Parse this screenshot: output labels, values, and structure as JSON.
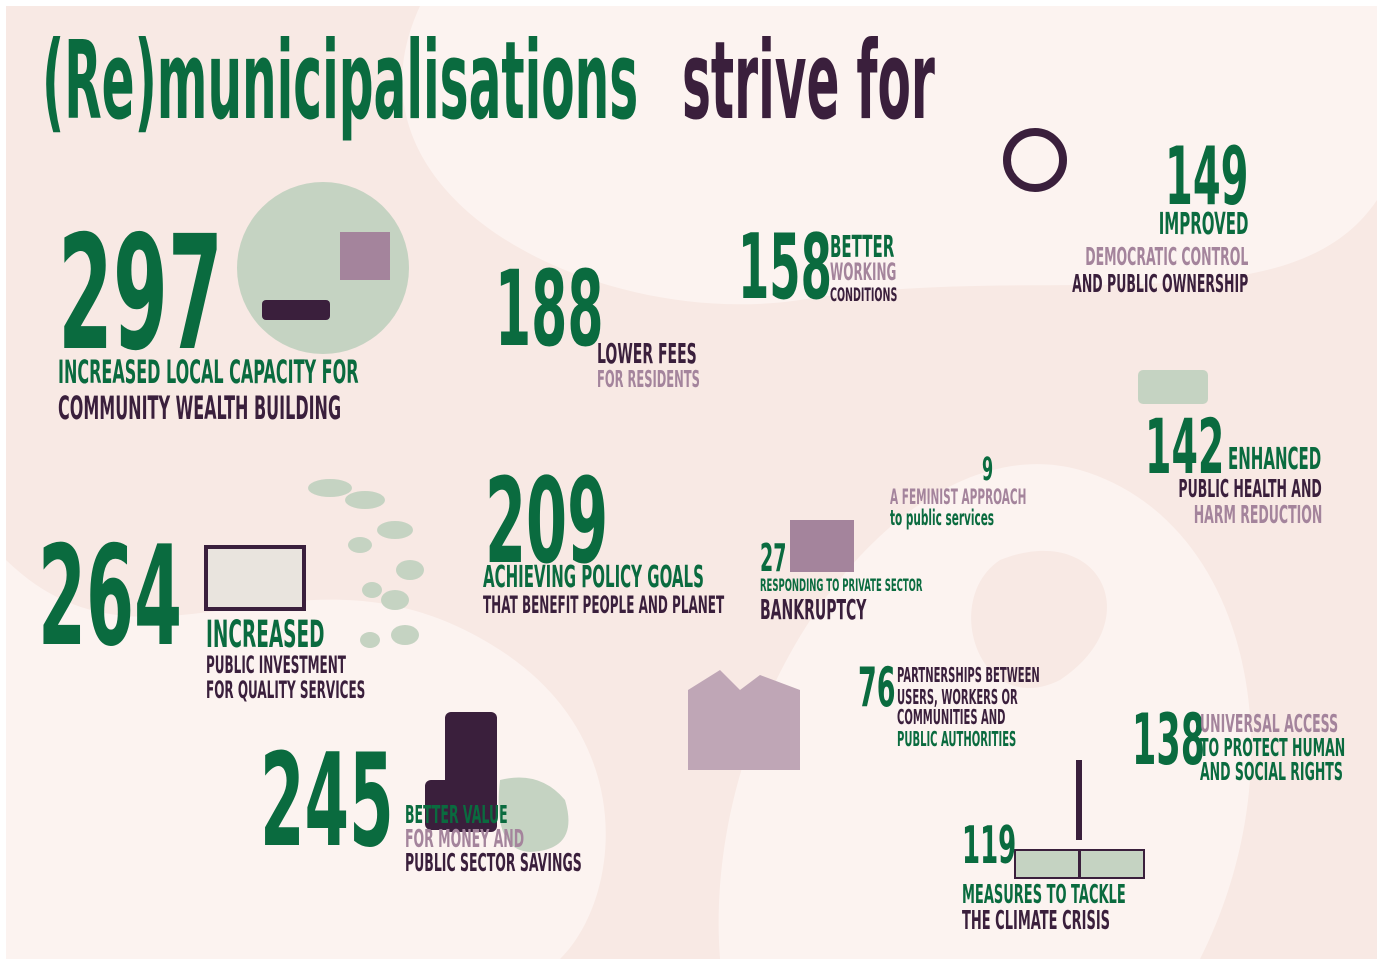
{
  "title": [
    "(Re)municipalisations",
    "strive for"
  ],
  "items": [
    {
      "number": 297,
      "lines": [
        "INCREASED LOCAL CAPACITY FOR",
        "COMMUNITY WEALTH BUILDING"
      ]
    },
    {
      "number": 188,
      "lines": [
        "LOWER FEES",
        "FOR RESIDENTS"
      ]
    },
    {
      "number": 158,
      "lines": [
        "BETTER",
        "WORKING",
        "CONDITIONS"
      ]
    },
    {
      "number": 149,
      "lines": [
        "IMPROVED",
        "DEMOCRATIC CONTROL",
        "AND PUBLIC OWNERSHIP"
      ]
    },
    {
      "number": 142,
      "lines": [
        "ENHANCED",
        "PUBLIC HEALTH AND",
        "HARM REDUCTION"
      ]
    },
    {
      "number": 9,
      "lines": [
        "A FEMINIST APPROACH",
        "to public services"
      ]
    },
    {
      "number": 27,
      "lines": [
        "RESPONDING TO PRIVATE SECTOR",
        "BANKRUPTCY"
      ]
    },
    {
      "number": 209,
      "lines": [
        "ACHIEVING POLICY GOALS",
        "THAT BENEFIT PEOPLE AND PLANET"
      ]
    },
    {
      "number": 264,
      "lines": [
        "INCREASED",
        "PUBLIC INVESTMENT",
        "FOR QUALITY SERVICES"
      ]
    },
    {
      "number": 245,
      "lines": [
        "BETTER VALUE",
        "FOR MONEY AND",
        "PUBLIC SECTOR SAVINGS"
      ]
    },
    {
      "number": 76,
      "lines": [
        "PARTNERSHIPS BETWEEN",
        "USERS, WORKERS OR",
        "COMMUNITIES AND",
        "PUBLIC AUTHORITIES"
      ]
    },
    {
      "number": 138,
      "lines": [
        "UNIVERSAL ACCESS",
        "TO PROTECT HUMAN",
        "AND SOCIAL RIGHTS"
      ]
    },
    {
      "number": 119,
      "lines": [
        "MEASURES TO TACKLE",
        "THE CLIMATE CRISIS"
      ]
    }
  ]
}
